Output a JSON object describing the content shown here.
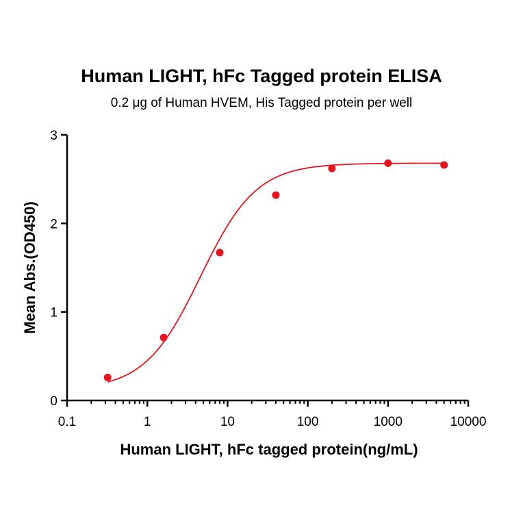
{
  "chart_data": {
    "type": "scatter",
    "title": "Human LIGHT, hFc Tagged protein ELISA",
    "subtitle": "0.2 μg of Human HVEM, His Tagged protein per well",
    "xlabel": "Human LIGHT, hFc tagged protein(ng/mL)",
    "ylabel": "Mean Abs.(OD450)",
    "x_scale": "log",
    "xlim": [
      0.1,
      10000
    ],
    "ylim": [
      0,
      3
    ],
    "x_ticks": [
      "0.1",
      "1",
      "10",
      "100",
      "1000",
      "10000"
    ],
    "y_ticks": [
      "0",
      "1",
      "2",
      "3"
    ],
    "grid": false,
    "colors": {
      "series": "#e8141b",
      "axis": "#000000"
    },
    "series": [
      {
        "x": [
          0.32,
          1.6,
          8,
          40,
          200,
          1000,
          5000
        ],
        "y": [
          0.26,
          0.71,
          1.67,
          2.32,
          2.62,
          2.68,
          2.66
        ],
        "fit": "4PL sigmoid",
        "fit_params": {
          "bottom": 0.12,
          "top": 2.68,
          "ec50": 4.6,
          "hill": 1.25
        }
      }
    ]
  }
}
